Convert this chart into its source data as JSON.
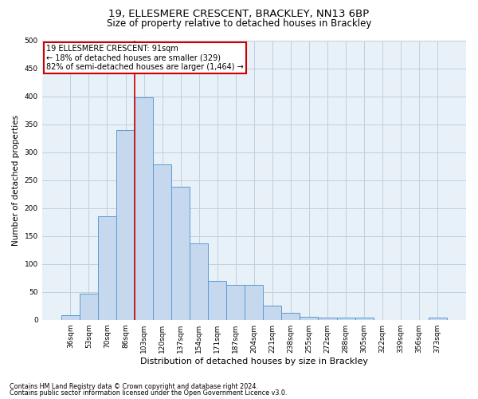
{
  "title1": "19, ELLESMERE CRESCENT, BRACKLEY, NN13 6BP",
  "title2": "Size of property relative to detached houses in Brackley",
  "xlabel": "Distribution of detached houses by size in Brackley",
  "ylabel": "Number of detached properties",
  "categories": [
    "36sqm",
    "53sqm",
    "70sqm",
    "86sqm",
    "103sqm",
    "120sqm",
    "137sqm",
    "154sqm",
    "171sqm",
    "187sqm",
    "204sqm",
    "221sqm",
    "238sqm",
    "255sqm",
    "272sqm",
    "288sqm",
    "305sqm",
    "322sqm",
    "339sqm",
    "356sqm",
    "373sqm"
  ],
  "values": [
    8,
    47,
    185,
    340,
    398,
    278,
    238,
    137,
    70,
    63,
    63,
    25,
    12,
    6,
    4,
    4,
    4,
    0,
    0,
    0,
    4
  ],
  "bar_color": "#c5d8ed",
  "bar_edge_color": "#5b9bd5",
  "property_line_x": 3.5,
  "annotation_line1": "19 ELLESMERE CRESCENT: 91sqm",
  "annotation_line2": "← 18% of detached houses are smaller (329)",
  "annotation_line3": "82% of semi-detached houses are larger (1,464) →",
  "annotation_box_color": "#ffffff",
  "annotation_box_edge": "#cc0000",
  "property_line_color": "#cc0000",
  "ylim": [
    0,
    500
  ],
  "yticks": [
    0,
    50,
    100,
    150,
    200,
    250,
    300,
    350,
    400,
    450,
    500
  ],
  "background_color": "#ffffff",
  "plot_bg_color": "#e8f0f8",
  "grid_color": "#c0cfe0",
  "footer_line1": "Contains HM Land Registry data © Crown copyright and database right 2024.",
  "footer_line2": "Contains public sector information licensed under the Open Government Licence v3.0.",
  "title_fontsize": 9.5,
  "subtitle_fontsize": 8.5,
  "ylabel_fontsize": 7.5,
  "xlabel_fontsize": 8,
  "tick_fontsize": 6.5,
  "annot_fontsize": 7,
  "footer_fontsize": 5.8
}
